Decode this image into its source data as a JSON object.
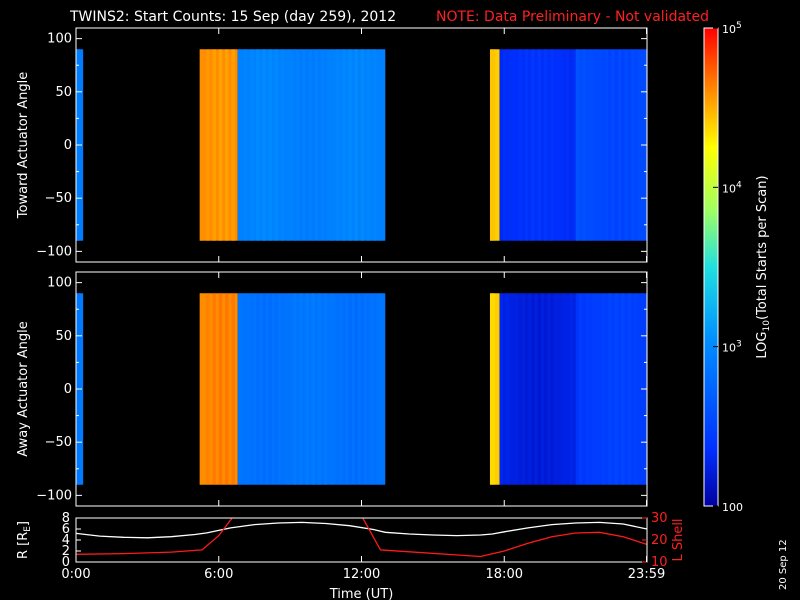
{
  "title": "TWINS2: Start Counts: 15 Sep (day 259), 2012",
  "note": "NOTE: Data Preliminary - Not validated",
  "stamp": "20 Sep 12",
  "chart_data": [
    {
      "type": "heatmap",
      "ylabel": "Toward Actuator Angle",
      "ylim": [
        -110,
        110
      ],
      "yticks": [
        "100",
        "50",
        "0",
        "−50",
        "−100"
      ],
      "ytick_values": [
        100,
        50,
        0,
        -50,
        -100
      ],
      "xlim": [
        0,
        24
      ],
      "segments": [
        {
          "start_h": 0.0,
          "end_h": 0.3,
          "level": 2.9
        },
        {
          "start_h": 5.2,
          "end_h": 6.8,
          "level": 4.6
        },
        {
          "start_h": 6.8,
          "end_h": 13.0,
          "level": 2.95
        },
        {
          "start_h": 17.4,
          "end_h": 17.8,
          "level": 4.4
        },
        {
          "start_h": 17.8,
          "end_h": 21.0,
          "level": 2.35
        },
        {
          "start_h": 21.0,
          "end_h": 24.0,
          "level": 2.55
        }
      ]
    },
    {
      "type": "heatmap",
      "ylabel": "Away Actuator Angle",
      "ylim": [
        -110,
        110
      ],
      "yticks": [
        "100",
        "50",
        "0",
        "−50",
        "−100"
      ],
      "ytick_values": [
        100,
        50,
        0,
        -50,
        -100
      ],
      "xlim": [
        0,
        24
      ],
      "segments": [
        {
          "start_h": 0.0,
          "end_h": 0.3,
          "level": 2.9
        },
        {
          "start_h": 5.2,
          "end_h": 6.8,
          "level": 4.6
        },
        {
          "start_h": 6.8,
          "end_h": 13.0,
          "level": 2.85
        },
        {
          "start_h": 17.4,
          "end_h": 17.8,
          "level": 4.4
        },
        {
          "start_h": 17.8,
          "end_h": 21.0,
          "level": 2.25
        },
        {
          "start_h": 21.0,
          "end_h": 24.0,
          "level": 2.45
        }
      ]
    },
    {
      "type": "line",
      "xlabel": "Time (UT)",
      "xticks": [
        "0:00",
        "6:00",
        "12:00",
        "18:00",
        "23:59"
      ],
      "xtick_values": [
        0,
        6,
        12,
        18,
        23.98
      ],
      "ylabel_left": "R [R",
      "ylabel_left_sub": "E",
      "ylabel_left_end": "]",
      "ylim_left": [
        0,
        8
      ],
      "yticks_left": [
        "0",
        "2",
        "4",
        "6",
        "8"
      ],
      "ytick_values_left": [
        0,
        2,
        4,
        6,
        8
      ],
      "ylabel_right": "L Shell",
      "ylim_right": [
        10,
        30
      ],
      "yticks_right": [
        "10",
        "20",
        "30"
      ],
      "ytick_values_right": [
        10,
        20,
        30
      ],
      "series": [
        {
          "color": "#ffffff",
          "axis": "left",
          "x": [
            0,
            1,
            2,
            3,
            4,
            5,
            5.5,
            6.5,
            7.5,
            8.5,
            9.5,
            10.5,
            11.5,
            12.5,
            13,
            14,
            15,
            16,
            17,
            17.5,
            18,
            19,
            20,
            21,
            22,
            23,
            24
          ],
          "y": [
            5.2,
            4.7,
            4.5,
            4.4,
            4.6,
            5.0,
            5.3,
            6.2,
            6.8,
            7.1,
            7.2,
            7.0,
            6.6,
            5.9,
            5.4,
            5.1,
            4.9,
            4.8,
            4.9,
            5.1,
            5.5,
            6.2,
            6.8,
            7.1,
            7.2,
            6.9,
            6.0
          ]
        },
        {
          "color": "#ff1a1a",
          "axis": "right",
          "x": [
            0,
            2,
            4,
            5.3,
            6.0,
            6.7,
            12.0,
            12.8,
            17.0,
            18.0,
            19.0,
            20.0,
            21.0,
            22.0,
            23.0,
            24.0
          ],
          "y": [
            13.5,
            13.8,
            14.5,
            15.5,
            22.0,
            32.0,
            31.0,
            15.5,
            12.5,
            15.0,
            18.5,
            21.5,
            23.2,
            23.5,
            21.5,
            18.0
          ]
        }
      ]
    }
  ],
  "colorbar": {
    "label_prefix": "LOG",
    "label_sub": "10",
    "label_suffix": "(Total Starts per Scan)",
    "range": [
      2,
      5
    ],
    "ticks": [
      {
        "value": 5,
        "base": "10",
        "exp": "5"
      },
      {
        "value": 4,
        "base": "10",
        "exp": "4"
      },
      {
        "value": 3,
        "base": "10",
        "exp": "3"
      },
      {
        "value": 2,
        "base": "100",
        "exp": ""
      }
    ]
  }
}
